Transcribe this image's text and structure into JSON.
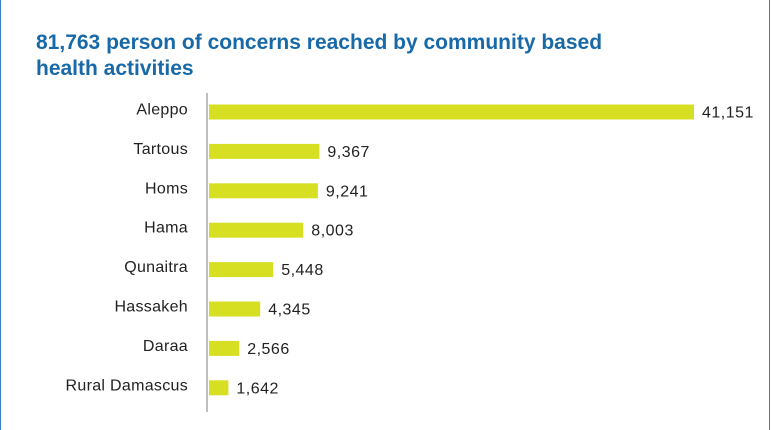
{
  "title": "81,763 person of concerns reached by community based health activities",
  "chart_data": {
    "type": "bar",
    "orientation": "horizontal",
    "title": "81,763 person of concerns reached by community based health activities",
    "xlabel": "",
    "ylabel": "",
    "categories": [
      "Aleppo",
      "Tartous",
      "Homs",
      "Hama",
      "Qunaitra",
      "Hassakeh",
      "Daraa",
      "Rural Damascus"
    ],
    "values": [
      41151,
      9367,
      9241,
      8003,
      5448,
      4345,
      2566,
      1642
    ],
    "value_labels": [
      "41,151",
      "9,367",
      "9,241",
      "8,003",
      "5,448",
      "4,345",
      "2,566",
      "1,642"
    ],
    "xlim": [
      0,
      41151
    ],
    "grid": false,
    "legend": "none",
    "colors": {
      "bar": "#d7df23",
      "axis": "#bfbfbf",
      "title": "#1869a8",
      "text": "#222222",
      "frame": "#3b7fc4"
    }
  }
}
